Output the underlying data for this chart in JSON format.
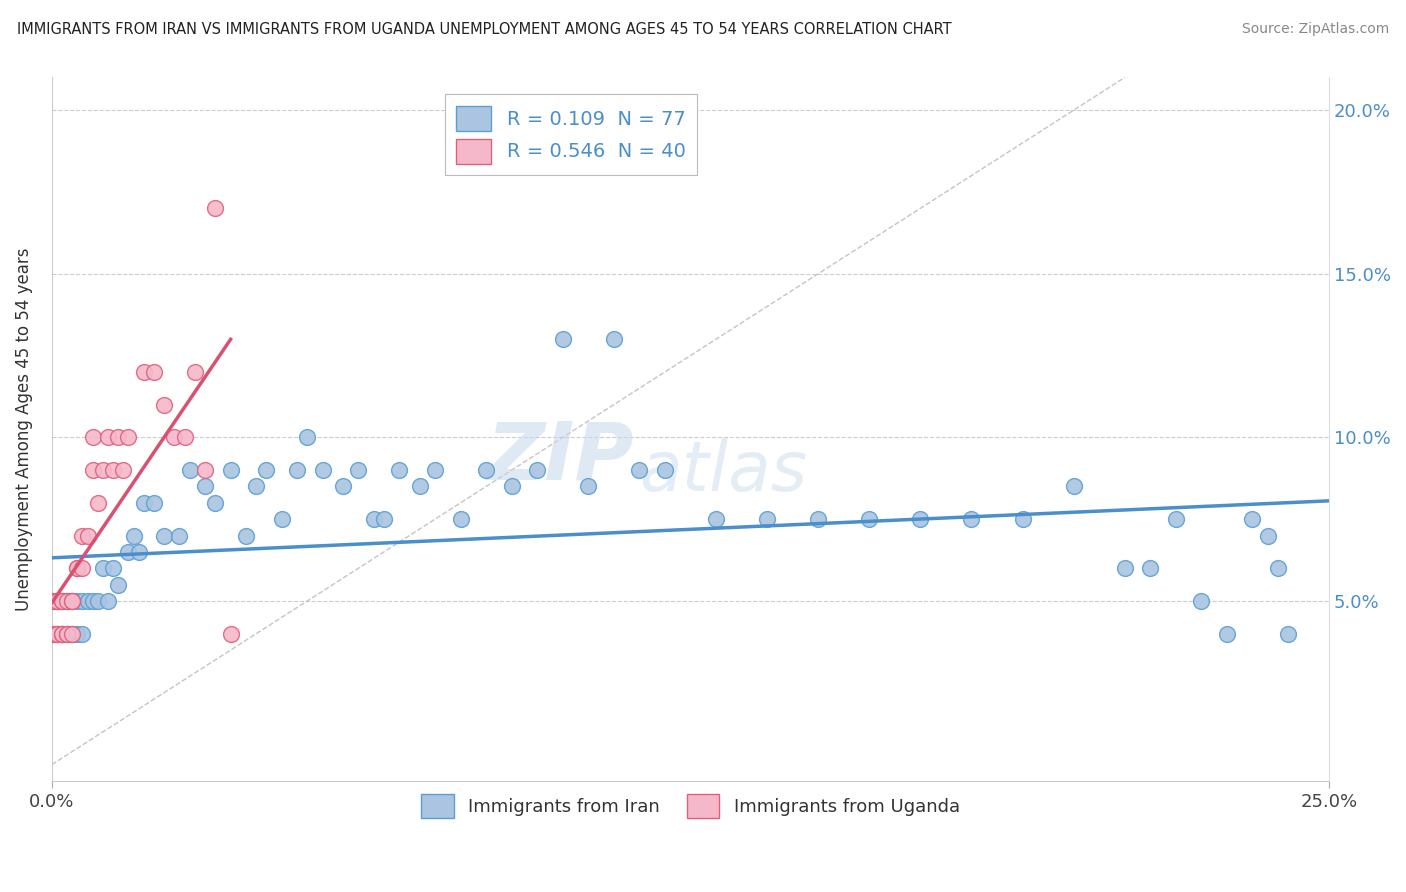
{
  "title": "IMMIGRANTS FROM IRAN VS IMMIGRANTS FROM UGANDA UNEMPLOYMENT AMONG AGES 45 TO 54 YEARS CORRELATION CHART",
  "source": "Source: ZipAtlas.com",
  "ylabel": "Unemployment Among Ages 45 to 54 years",
  "watermark_zip": "ZIP",
  "watermark_atlas": "atlas",
  "iran_color": "#aac4e2",
  "iran_edge_color": "#5a9fd4",
  "uganda_color": "#f5b8cb",
  "uganda_edge_color": "#e0607a",
  "iran_line_color": "#4a8ecb",
  "uganda_line_color": "#d95070",
  "iran_R": 0.109,
  "iran_N": 77,
  "uganda_R": 0.546,
  "uganda_N": 40,
  "xlim": [
    0.0,
    0.25
  ],
  "ylim": [
    -0.005,
    0.21
  ],
  "right_yticks": [
    0.05,
    0.1,
    0.15,
    0.2
  ],
  "right_yticklabels": [
    "5.0%",
    "10.0%",
    "15.0%",
    "20.0%"
  ],
  "iran_x": [
    0.0,
    0.0,
    0.001,
    0.001,
    0.001,
    0.002,
    0.002,
    0.002,
    0.002,
    0.003,
    0.003,
    0.003,
    0.004,
    0.004,
    0.004,
    0.005,
    0.005,
    0.006,
    0.006,
    0.007,
    0.008,
    0.009,
    0.01,
    0.011,
    0.012,
    0.013,
    0.015,
    0.016,
    0.017,
    0.018,
    0.02,
    0.022,
    0.025,
    0.027,
    0.03,
    0.032,
    0.035,
    0.038,
    0.04,
    0.042,
    0.045,
    0.048,
    0.05,
    0.053,
    0.057,
    0.06,
    0.063,
    0.065,
    0.068,
    0.072,
    0.075,
    0.08,
    0.085,
    0.09,
    0.095,
    0.1,
    0.105,
    0.11,
    0.115,
    0.12,
    0.13,
    0.14,
    0.15,
    0.16,
    0.17,
    0.18,
    0.19,
    0.2,
    0.21,
    0.215,
    0.22,
    0.225,
    0.23,
    0.235,
    0.238,
    0.24,
    0.242
  ],
  "iran_y": [
    0.05,
    0.04,
    0.05,
    0.04,
    0.04,
    0.04,
    0.05,
    0.04,
    0.04,
    0.05,
    0.04,
    0.04,
    0.05,
    0.04,
    0.04,
    0.05,
    0.04,
    0.05,
    0.04,
    0.05,
    0.05,
    0.05,
    0.06,
    0.05,
    0.06,
    0.055,
    0.065,
    0.07,
    0.065,
    0.08,
    0.08,
    0.07,
    0.07,
    0.09,
    0.085,
    0.08,
    0.09,
    0.07,
    0.085,
    0.09,
    0.075,
    0.09,
    0.1,
    0.09,
    0.085,
    0.09,
    0.075,
    0.075,
    0.09,
    0.085,
    0.09,
    0.075,
    0.09,
    0.085,
    0.09,
    0.13,
    0.085,
    0.13,
    0.09,
    0.09,
    0.075,
    0.075,
    0.075,
    0.075,
    0.075,
    0.075,
    0.075,
    0.085,
    0.06,
    0.06,
    0.075,
    0.05,
    0.04,
    0.075,
    0.07,
    0.06,
    0.04
  ],
  "uganda_x": [
    0.0,
    0.0,
    0.0,
    0.001,
    0.001,
    0.001,
    0.001,
    0.002,
    0.002,
    0.002,
    0.002,
    0.003,
    0.003,
    0.003,
    0.004,
    0.004,
    0.004,
    0.005,
    0.005,
    0.006,
    0.006,
    0.007,
    0.008,
    0.008,
    0.009,
    0.01,
    0.011,
    0.012,
    0.013,
    0.014,
    0.015,
    0.018,
    0.02,
    0.022,
    0.024,
    0.026,
    0.028,
    0.03,
    0.032,
    0.035
  ],
  "uganda_y": [
    0.05,
    0.04,
    0.04,
    0.05,
    0.04,
    0.04,
    0.05,
    0.04,
    0.05,
    0.04,
    0.05,
    0.05,
    0.04,
    0.04,
    0.05,
    0.05,
    0.04,
    0.06,
    0.06,
    0.06,
    0.07,
    0.07,
    0.1,
    0.09,
    0.08,
    0.09,
    0.1,
    0.09,
    0.1,
    0.09,
    0.1,
    0.12,
    0.12,
    0.11,
    0.1,
    0.1,
    0.12,
    0.09,
    0.17,
    0.04
  ],
  "dash_line_x": [
    0.0,
    0.21
  ],
  "dash_line_y": [
    0.0,
    0.21
  ]
}
